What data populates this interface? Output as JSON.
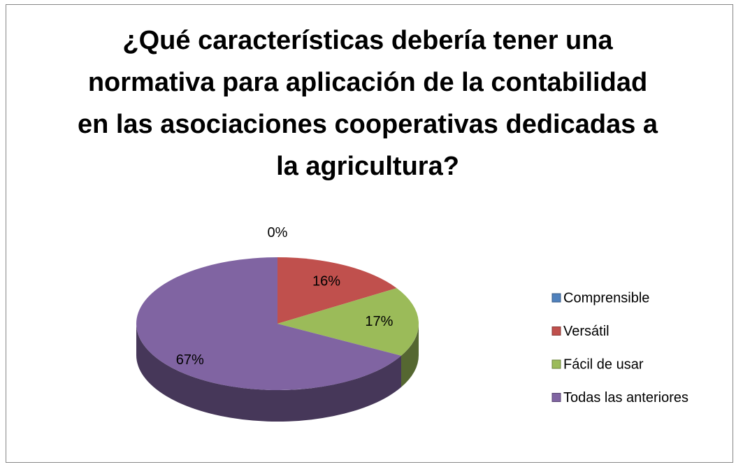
{
  "chart_data": {
    "type": "pie",
    "title": "¿Qué características debería tener una normativa para aplicación de la contabilidad en las asociaciones cooperativas dedicadas a la agricultura?",
    "categories": [
      "Comprensible",
      "Versátil",
      "Fácil de usar",
      "Todas las anteriores"
    ],
    "values": [
      0,
      16,
      17,
      67
    ],
    "value_labels": [
      "0%",
      "16%",
      "17%",
      "67%"
    ],
    "colors": [
      "#4f81bd",
      "#c0504d",
      "#9bbb59",
      "#8064a2"
    ],
    "legend": "right"
  }
}
